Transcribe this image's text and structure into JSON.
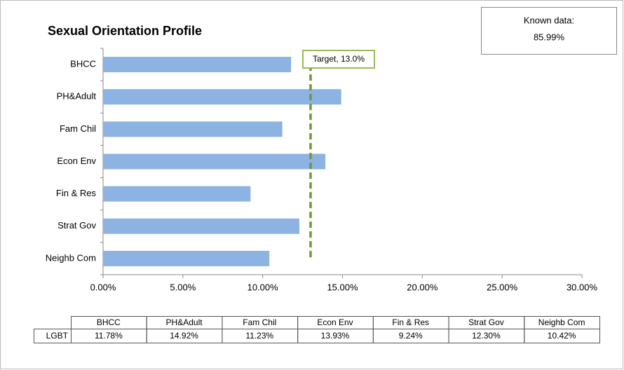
{
  "chart_data": {
    "type": "bar",
    "orientation": "horizontal",
    "title": "Sexual Orientation Profile",
    "categories": [
      "BHCC",
      "PH&Adult",
      "Fam Chil",
      "Econ Env",
      "Fin & Res",
      "Strat Gov",
      "Neighb Com"
    ],
    "series": [
      {
        "name": "LGBT",
        "color": "#8db3e2",
        "values": [
          11.78,
          14.92,
          11.23,
          13.93,
          9.24,
          12.3,
          10.42
        ],
        "value_labels": [
          "11.78%",
          "14.92%",
          "11.23%",
          "13.93%",
          "9.24%",
          "12.30%",
          "10.42%"
        ]
      }
    ],
    "xlim": [
      0,
      30
    ],
    "xticks": [
      {
        "value": 0,
        "label": "0.00%"
      },
      {
        "value": 5,
        "label": "5.00%"
      },
      {
        "value": 10,
        "label": "10.00%"
      },
      {
        "value": 15,
        "label": "15.00%"
      },
      {
        "value": 20,
        "label": "20.00%"
      },
      {
        "value": 25,
        "label": "25.00%"
      },
      {
        "value": 30,
        "label": "30.00%"
      }
    ],
    "target": {
      "value": 13.0,
      "label": "Target, 13.0%",
      "color": "#77933c"
    },
    "known_data": {
      "title": "Known data:",
      "text": "85.99%"
    }
  }
}
